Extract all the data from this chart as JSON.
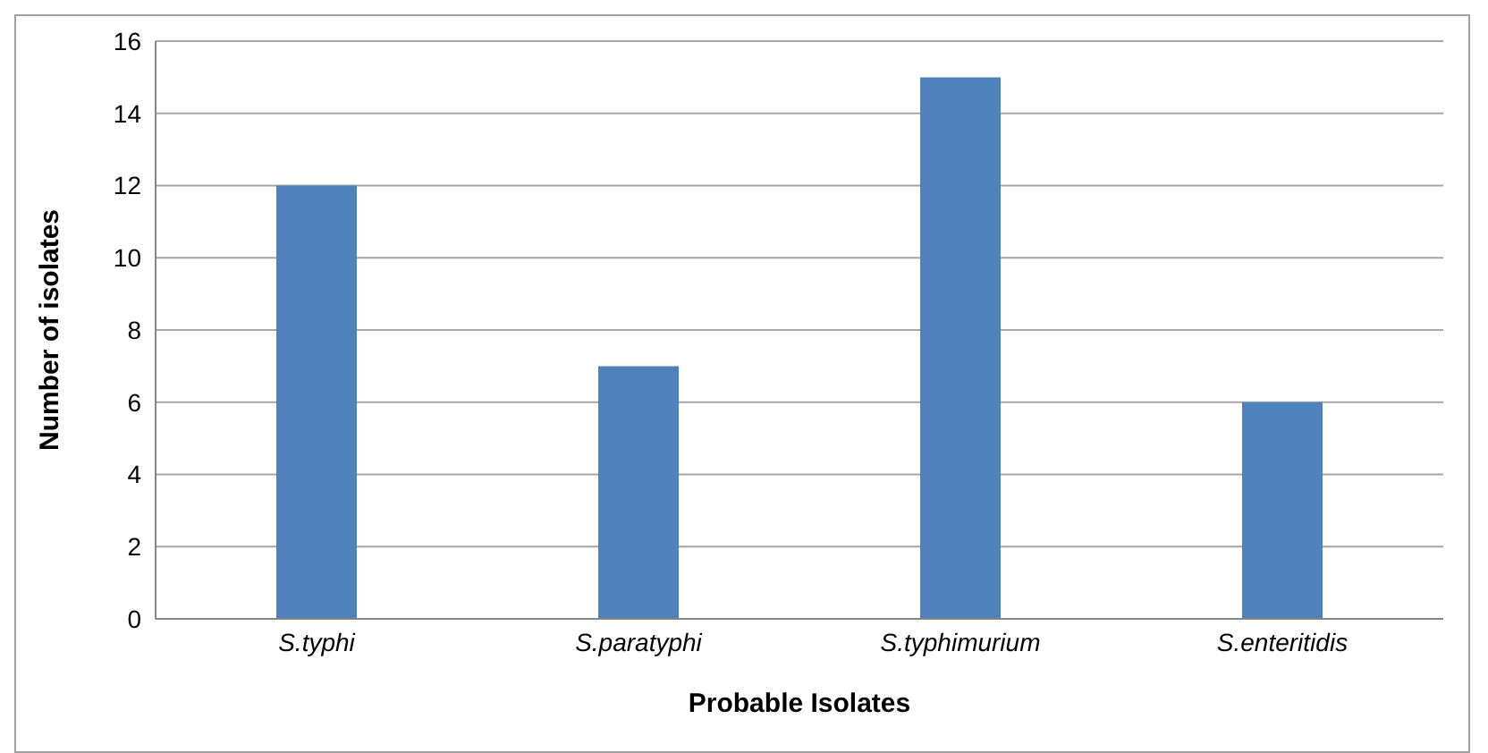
{
  "chart_data": {
    "type": "bar",
    "xlabel": "Probable Isolates",
    "ylabel": "Number of isolates",
    "categories": [
      "S.typhi",
      "S.paratyphi",
      "S.typhimurium",
      "S.enteritidis"
    ],
    "values": [
      12,
      7,
      15,
      6
    ],
    "color": "#4f81bd",
    "ylim": [
      0,
      16
    ],
    "yticks": [
      0,
      2,
      4,
      6,
      8,
      10,
      12,
      14,
      16
    ],
    "grid": "y",
    "legend": false
  }
}
